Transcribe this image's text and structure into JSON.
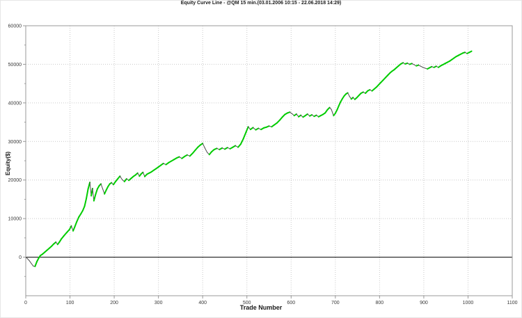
{
  "chart_data": {
    "type": "line",
    "title": "Equity Curve Line - @QM 15 min.(03.01.2006 10:15 - 22.06.2018 14:29)",
    "xlabel": "Trade Number",
    "ylabel": "Equity($)",
    "xlim": [
      0,
      1100
    ],
    "ylim": [
      -10000,
      60000
    ],
    "x_major_ticks": [
      0,
      100,
      200,
      300,
      400,
      500,
      600,
      700,
      800,
      900,
      1000,
      1100
    ],
    "y_major_ticks": [
      0,
      10000,
      20000,
      30000,
      40000,
      50000,
      60000
    ],
    "y_minor_ticks": [
      -5000,
      5000,
      15000,
      25000,
      35000,
      45000,
      55000
    ],
    "grid": {
      "show": true,
      "style": "dotted",
      "color": "#c9c9c9"
    },
    "legend_position": "none",
    "zero_line": {
      "value": 0,
      "color": "#000000"
    },
    "colors": {
      "gain_segment": "#00cc00",
      "loss_segment": "#4a4a4a",
      "axis_border": "#999999",
      "tick_label": "#3a3a3a"
    },
    "series": [
      {
        "name": "Equity",
        "color_rule": "green when rising, dark gray when falling or flat",
        "points": [
          [
            0,
            0
          ],
          [
            4,
            -400
          ],
          [
            8,
            -900
          ],
          [
            13,
            -1700
          ],
          [
            17,
            -2300
          ],
          [
            21,
            -2400
          ],
          [
            25,
            -1200
          ],
          [
            29,
            -300
          ],
          [
            33,
            400
          ],
          [
            38,
            800
          ],
          [
            43,
            1300
          ],
          [
            48,
            1800
          ],
          [
            53,
            2300
          ],
          [
            58,
            2800
          ],
          [
            63,
            3400
          ],
          [
            68,
            3900
          ],
          [
            72,
            3300
          ],
          [
            76,
            3900
          ],
          [
            81,
            4800
          ],
          [
            86,
            5500
          ],
          [
            92,
            6300
          ],
          [
            99,
            7200
          ],
          [
            103,
            8100
          ],
          [
            107,
            6800
          ],
          [
            111,
            7900
          ],
          [
            115,
            9100
          ],
          [
            120,
            10400
          ],
          [
            125,
            11300
          ],
          [
            129,
            12100
          ],
          [
            133,
            13200
          ],
          [
            137,
            15200
          ],
          [
            141,
            17700
          ],
          [
            145,
            19400
          ],
          [
            148,
            15900
          ],
          [
            151,
            17800
          ],
          [
            154,
            14600
          ],
          [
            158,
            16300
          ],
          [
            162,
            17700
          ],
          [
            166,
            18500
          ],
          [
            170,
            19000
          ],
          [
            174,
            17700
          ],
          [
            178,
            16400
          ],
          [
            182,
            17400
          ],
          [
            186,
            18300
          ],
          [
            190,
            19000
          ],
          [
            194,
            19300
          ],
          [
            198,
            18800
          ],
          [
            203,
            19600
          ],
          [
            208,
            20300
          ],
          [
            213,
            21000
          ],
          [
            218,
            20100
          ],
          [
            223,
            19600
          ],
          [
            228,
            20300
          ],
          [
            233,
            19900
          ],
          [
            238,
            20400
          ],
          [
            243,
            20900
          ],
          [
            248,
            21300
          ],
          [
            253,
            21800
          ],
          [
            257,
            21000
          ],
          [
            261,
            21600
          ],
          [
            265,
            22000
          ],
          [
            269,
            20900
          ],
          [
            274,
            21500
          ],
          [
            279,
            21800
          ],
          [
            284,
            22100
          ],
          [
            289,
            22500
          ],
          [
            294,
            22900
          ],
          [
            299,
            23300
          ],
          [
            305,
            23800
          ],
          [
            311,
            24300
          ],
          [
            317,
            24000
          ],
          [
            323,
            24500
          ],
          [
            329,
            24900
          ],
          [
            335,
            25300
          ],
          [
            341,
            25700
          ],
          [
            347,
            26000
          ],
          [
            353,
            25600
          ],
          [
            359,
            26100
          ],
          [
            365,
            26500
          ],
          [
            371,
            26200
          ],
          [
            377,
            26900
          ],
          [
            383,
            27700
          ],
          [
            389,
            28500
          ],
          [
            395,
            29100
          ],
          [
            400,
            29500
          ],
          [
            405,
            28300
          ],
          [
            410,
            27200
          ],
          [
            415,
            26600
          ],
          [
            420,
            27300
          ],
          [
            426,
            27900
          ],
          [
            432,
            28200
          ],
          [
            438,
            27900
          ],
          [
            444,
            28300
          ],
          [
            450,
            28000
          ],
          [
            456,
            28400
          ],
          [
            462,
            28100
          ],
          [
            468,
            28500
          ],
          [
            474,
            28900
          ],
          [
            480,
            28500
          ],
          [
            486,
            29300
          ],
          [
            492,
            30700
          ],
          [
            498,
            32400
          ],
          [
            503,
            33800
          ],
          [
            508,
            33100
          ],
          [
            514,
            33600
          ],
          [
            520,
            33000
          ],
          [
            526,
            33400
          ],
          [
            532,
            33100
          ],
          [
            538,
            33500
          ],
          [
            544,
            33700
          ],
          [
            550,
            34000
          ],
          [
            556,
            33800
          ],
          [
            562,
            34300
          ],
          [
            568,
            34800
          ],
          [
            574,
            35500
          ],
          [
            580,
            36300
          ],
          [
            586,
            37000
          ],
          [
            592,
            37400
          ],
          [
            597,
            37600
          ],
          [
            602,
            37200
          ],
          [
            607,
            36700
          ],
          [
            612,
            37100
          ],
          [
            617,
            36400
          ],
          [
            622,
            36800
          ],
          [
            627,
            36300
          ],
          [
            632,
            36700
          ],
          [
            637,
            37100
          ],
          [
            642,
            36600
          ],
          [
            647,
            36900
          ],
          [
            652,
            36500
          ],
          [
            657,
            36800
          ],
          [
            662,
            36400
          ],
          [
            667,
            36700
          ],
          [
            672,
            37000
          ],
          [
            677,
            37400
          ],
          [
            682,
            38200
          ],
          [
            687,
            38800
          ],
          [
            691,
            38300
          ],
          [
            696,
            36700
          ],
          [
            700,
            37300
          ],
          [
            704,
            38200
          ],
          [
            708,
            39300
          ],
          [
            712,
            40300
          ],
          [
            716,
            41100
          ],
          [
            720,
            41800
          ],
          [
            724,
            42300
          ],
          [
            728,
            42600
          ],
          [
            732,
            41700
          ],
          [
            736,
            41000
          ],
          [
            740,
            41400
          ],
          [
            744,
            40900
          ],
          [
            748,
            41300
          ],
          [
            753,
            41900
          ],
          [
            758,
            42500
          ],
          [
            763,
            42800
          ],
          [
            768,
            42500
          ],
          [
            773,
            43100
          ],
          [
            778,
            43400
          ],
          [
            783,
            43100
          ],
          [
            788,
            43600
          ],
          [
            793,
            44100
          ],
          [
            798,
            44700
          ],
          [
            803,
            45300
          ],
          [
            808,
            45900
          ],
          [
            813,
            46500
          ],
          [
            818,
            47100
          ],
          [
            823,
            47700
          ],
          [
            828,
            48200
          ],
          [
            833,
            48600
          ],
          [
            838,
            49100
          ],
          [
            843,
            49600
          ],
          [
            848,
            50100
          ],
          [
            853,
            50400
          ],
          [
            858,
            50100
          ],
          [
            863,
            50300
          ],
          [
            868,
            50000
          ],
          [
            873,
            50200
          ],
          [
            878,
            49900
          ],
          [
            883,
            49600
          ],
          [
            888,
            49800
          ],
          [
            893,
            49500
          ],
          [
            898,
            49200
          ],
          [
            903,
            49000
          ],
          [
            908,
            48800
          ],
          [
            913,
            49100
          ],
          [
            918,
            49400
          ],
          [
            923,
            49200
          ],
          [
            928,
            49500
          ],
          [
            933,
            49200
          ],
          [
            938,
            49600
          ],
          [
            943,
            49900
          ],
          [
            948,
            50200
          ],
          [
            953,
            50500
          ],
          [
            958,
            50800
          ],
          [
            963,
            51200
          ],
          [
            968,
            51600
          ],
          [
            973,
            52000
          ],
          [
            978,
            52300
          ],
          [
            983,
            52600
          ],
          [
            988,
            52900
          ],
          [
            993,
            53100
          ],
          [
            998,
            52800
          ],
          [
            1003,
            53100
          ],
          [
            1008,
            53400
          ]
        ]
      }
    ]
  }
}
